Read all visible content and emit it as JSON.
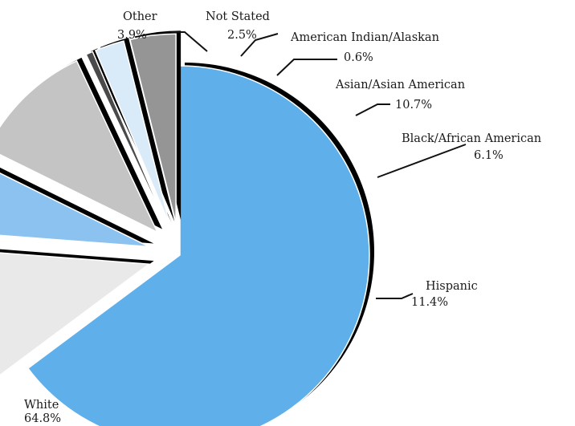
{
  "chart_data": {
    "type": "pie",
    "title": "",
    "slices": [
      {
        "label": "White",
        "value": 64.8,
        "value_label": "64.8%",
        "color": "#5fafea"
      },
      {
        "label": "Hispanic",
        "value": 11.4,
        "value_label": "11.4%",
        "color": "#e9e9e9"
      },
      {
        "label": "Black/African American",
        "value": 6.1,
        "value_label": "6.1%",
        "color": "#8cc2ef"
      },
      {
        "label": "Asian/Asian American",
        "value": 10.7,
        "value_label": "10.7%",
        "color": "#c4c4c4"
      },
      {
        "label": "American Indian/Alaskan",
        "value": 0.6,
        "value_label": "0.6%",
        "color": "#4a4a4a"
      },
      {
        "label": "Not Stated",
        "value": 2.5,
        "value_label": "2.5%",
        "color": "#d9eaf8"
      },
      {
        "label": "Other",
        "value": 3.9,
        "value_label": "3.9%",
        "color": "#959595"
      }
    ],
    "legend": "none"
  }
}
